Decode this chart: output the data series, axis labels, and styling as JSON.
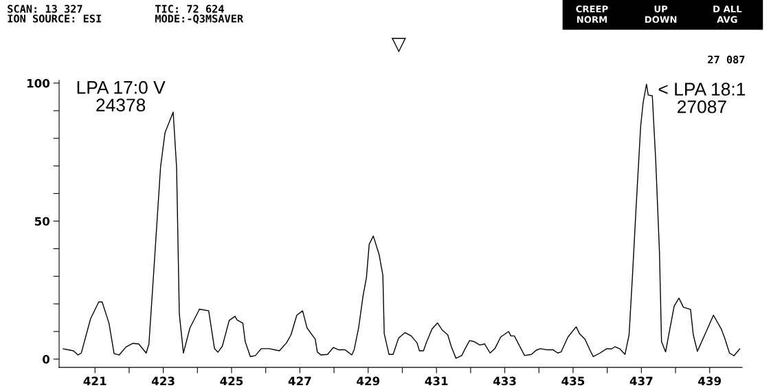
{
  "chart_data": {
    "type": "line",
    "x": [
      420.07,
      420.37,
      420.5,
      420.6,
      420.87,
      421.11,
      421.21,
      421.41,
      421.56,
      421.71,
      421.91,
      422.11,
      422.28,
      422.5,
      422.58,
      422.71,
      422.92,
      423.05,
      423.29,
      423.39,
      423.47,
      423.59,
      423.78,
      424.06,
      424.33,
      424.5,
      424.6,
      424.73,
      424.93,
      425.1,
      425.16,
      425.33,
      425.4,
      425.55,
      425.7,
      425.87,
      426.1,
      426.4,
      426.61,
      426.74,
      426.91,
      427.08,
      427.21,
      427.45,
      427.51,
      427.61,
      427.81,
      427.98,
      428.12,
      428.32,
      428.52,
      428.59,
      428.72,
      428.85,
      428.95,
      429.03,
      429.15,
      429.32,
      429.43,
      429.47,
      429.61,
      429.73,
      429.89,
      430.08,
      430.26,
      430.43,
      430.5,
      430.62,
      430.7,
      430.87,
      431.03,
      431.17,
      431.33,
      431.43,
      431.57,
      431.74,
      431.84,
      431.97,
      432.11,
      432.27,
      432.41,
      432.57,
      432.71,
      432.88,
      433.11,
      433.18,
      433.28,
      433.58,
      433.78,
      433.92,
      434.04,
      434.21,
      434.41,
      434.55,
      434.65,
      434.85,
      435.09,
      435.19,
      435.35,
      435.49,
      435.59,
      435.79,
      435.99,
      436.13,
      436.23,
      436.37,
      436.52,
      436.64,
      436.74,
      436.84,
      436.98,
      437.05,
      437.15,
      437.2,
      437.32,
      437.42,
      437.53,
      437.59,
      437.71,
      437.79,
      437.96,
      438.1,
      438.23,
      438.44,
      438.52,
      438.64,
      438.87,
      439.11,
      439.34,
      439.44,
      439.58,
      439.71,
      439.88
    ],
    "series": [
      {
        "color": "#000000",
        "values": [
          3.7,
          3.0,
          1.5,
          2.2,
          14.6,
          20.7,
          20.7,
          13,
          2,
          1.5,
          4.4,
          5.7,
          5.5,
          2.2,
          5.5,
          29.6,
          69.5,
          82,
          89.5,
          69.5,
          16.3,
          2.2,
          11.3,
          18.1,
          17.5,
          3.8,
          2.5,
          4.7,
          14,
          15.5,
          14.2,
          13,
          6.3,
          0.9,
          1.3,
          3.8,
          3.8,
          3,
          5.9,
          8.8,
          15.9,
          17.5,
          11.3,
          7.2,
          2.6,
          1.5,
          1.7,
          4.2,
          3.4,
          3.4,
          1.5,
          3.4,
          11.3,
          22.9,
          29.6,
          41.6,
          44.6,
          37.9,
          30.4,
          9.2,
          1.7,
          1.7,
          7.6,
          9.6,
          8.4,
          5.9,
          3,
          3,
          5.9,
          10.9,
          13.1,
          10.5,
          8.8,
          4.7,
          0.3,
          1.3,
          3.8,
          6.7,
          6.3,
          5.1,
          5.5,
          2.2,
          3.8,
          8,
          10,
          8.4,
          8.4,
          1.3,
          1.7,
          3.2,
          3.8,
          3.4,
          3.4,
          2.2,
          2.6,
          8,
          11.7,
          9.2,
          7.2,
          3.4,
          0.9,
          2.2,
          3.8,
          3.7,
          4.5,
          3.7,
          1.7,
          8.8,
          30.4,
          53.7,
          84.5,
          92.8,
          99.6,
          95.7,
          95.4,
          72,
          38.7,
          6.3,
          2.6,
          8,
          19.2,
          22.1,
          18.8,
          18,
          8.8,
          2.8,
          9.2,
          15.9,
          10.9,
          7.6,
          2.2,
          1.2,
          3.7
        ]
      }
    ],
    "xlim": [
      419.95,
      439.95
    ],
    "xticks": [
      421,
      {
        "value": 422,
        "label": null
      },
      423,
      {
        "value": 424,
        "label": null
      },
      425,
      {
        "value": 426,
        "label": null
      },
      427,
      {
        "value": 428,
        "label": null
      },
      429,
      {
        "value": 430,
        "label": null
      },
      431,
      {
        "value": 432,
        "label": null
      },
      433,
      {
        "value": 434,
        "label": null
      },
      435,
      {
        "value": 436,
        "label": null
      },
      437,
      {
        "value": 438,
        "label": null
      },
      439
    ],
    "ylim": [
      -3,
      101
    ],
    "yticks": [
      0,
      {
        "value": 10,
        "label": null
      },
      {
        "value": 20,
        "label": null
      },
      {
        "value": 30,
        "label": null
      },
      {
        "value": 40,
        "label": null
      },
      50,
      {
        "value": 60,
        "label": null
      },
      {
        "value": 70,
        "label": null
      },
      {
        "value": 80,
        "label": null
      },
      {
        "value": 90,
        "label": null
      },
      100
    ],
    "grid": false,
    "legend": false,
    "marker": "none",
    "line_style": "solid",
    "annotations": [
      {
        "text": "LPA 17:0 V\n24378",
        "x": 423.29,
        "y": 89.5
      },
      {
        "text": "< LPA 18:1\n27087",
        "x": 437.15,
        "y": 99.6
      },
      "SCAN: 13 327",
      "TIC: 72 624",
      "ION SOURCE: ESI",
      "MODE:-Q3MSAVER",
      "CREEP",
      "UP",
      "D ALL",
      "NORM",
      "DOWN",
      "AVG",
      "▽",
      "27 087"
    ]
  }
}
